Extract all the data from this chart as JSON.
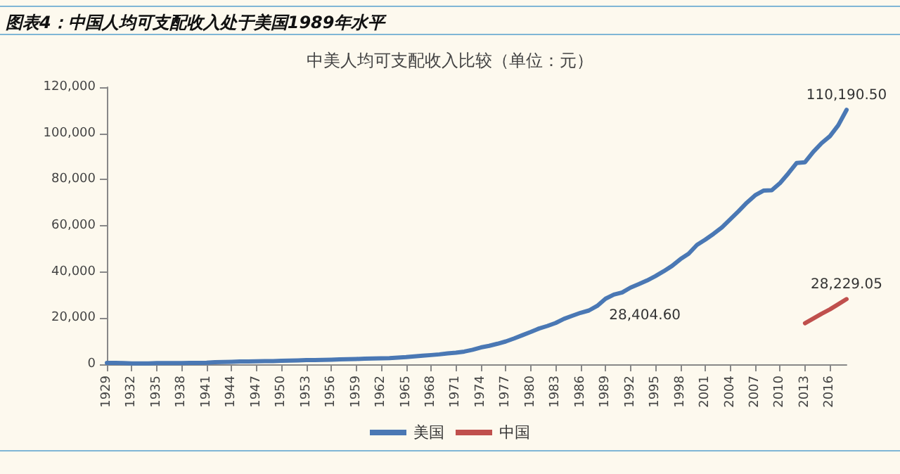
{
  "chart_data": {
    "type": "line",
    "title": "图表4：中国人均可支配收入处于美国1989年水平",
    "subtitle": "中美人均可支配收入比较（单位：元）",
    "categories": [
      "1929",
      null,
      null,
      "1932",
      null,
      null,
      "1935",
      null,
      null,
      "1938",
      null,
      null,
      "1941",
      null,
      null,
      "1944",
      null,
      null,
      "1947",
      null,
      null,
      "1950",
      null,
      null,
      "1953",
      null,
      null,
      "1956",
      null,
      null,
      "1959",
      null,
      null,
      "1962",
      null,
      null,
      "1965",
      null,
      null,
      "1968",
      null,
      null,
      "1971",
      null,
      null,
      "1974",
      null,
      null,
      "1977",
      null,
      null,
      "1980",
      null,
      null,
      "1983",
      null,
      null,
      "1986",
      null,
      null,
      "1989",
      null,
      null,
      "1992",
      null,
      null,
      "1995",
      null,
      null,
      "1998",
      null,
      null,
      "2001",
      null,
      null,
      "2004",
      null,
      null,
      "2007",
      null,
      null,
      "2010",
      null,
      null,
      "2013",
      null,
      null,
      "2016",
      null,
      null
    ],
    "series": [
      {
        "name": "美国",
        "color": "#4a78b4",
        "values": [
          600,
          600,
          500,
          400,
          400,
          400,
          500,
          500,
          500,
          500,
          600,
          600,
          700,
          900,
          1000,
          1100,
          1200,
          1200,
          1300,
          1400,
          1400,
          1500,
          1600,
          1700,
          1800,
          1800,
          1900,
          2000,
          2100,
          2200,
          2300,
          2400,
          2500,
          2600,
          2700,
          2900,
          3100,
          3400,
          3700,
          4000,
          4300,
          4700,
          5000,
          5500,
          6300,
          7300,
          8000,
          8900,
          9900,
          11200,
          12600,
          14000,
          15500,
          16600,
          17900,
          19700,
          21000,
          22300,
          23300,
          25300,
          28404.6,
          30200,
          31100,
          33200,
          34700,
          36300,
          38200,
          40300,
          42600,
          45500,
          47900,
          51700,
          54000,
          56500,
          59300,
          62800,
          66300,
          70000,
          73200,
          75200,
          75400,
          78500,
          82700,
          87200,
          87500,
          92000,
          95800,
          98800,
          103500,
          110190.5
        ],
        "value_labels": [
          null,
          null,
          null,
          null,
          null,
          null,
          null,
          null,
          null,
          null,
          null,
          null,
          null,
          null,
          null,
          null,
          null,
          null,
          null,
          null,
          null,
          null,
          null,
          null,
          null,
          null,
          null,
          null,
          null,
          null,
          null,
          null,
          null,
          null,
          null,
          null,
          null,
          null,
          null,
          null,
          null,
          null,
          null,
          null,
          null,
          null,
          null,
          null,
          null,
          null,
          null,
          null,
          null,
          null,
          null,
          null,
          null,
          null,
          null,
          null,
          "28,404.60",
          null,
          null,
          null,
          null,
          null,
          null,
          null,
          null,
          null,
          null,
          null,
          null,
          null,
          null,
          null,
          null,
          null,
          null,
          null,
          null,
          null,
          null,
          null,
          null,
          null,
          null,
          null,
          null,
          "110,190.50"
        ]
      },
      {
        "name": "中国",
        "color": "#c0504d",
        "values": [
          null,
          null,
          null,
          null,
          null,
          null,
          null,
          null,
          null,
          null,
          null,
          null,
          null,
          null,
          null,
          null,
          null,
          null,
          null,
          null,
          null,
          null,
          null,
          null,
          null,
          null,
          null,
          null,
          null,
          null,
          null,
          null,
          null,
          null,
          null,
          null,
          null,
          null,
          null,
          null,
          null,
          null,
          null,
          null,
          null,
          null,
          null,
          null,
          null,
          null,
          null,
          null,
          null,
          null,
          null,
          null,
          null,
          null,
          null,
          null,
          null,
          null,
          null,
          null,
          null,
          null,
          null,
          null,
          null,
          null,
          null,
          null,
          null,
          null,
          null,
          null,
          null,
          null,
          null,
          null,
          null,
          null,
          null,
          null,
          17800,
          19800,
          21900,
          23800,
          26000,
          28229.05
        ],
        "value_labels": [
          null,
          null,
          null,
          null,
          null,
          null,
          null,
          null,
          null,
          null,
          null,
          null,
          null,
          null,
          null,
          null,
          null,
          null,
          null,
          null,
          null,
          null,
          null,
          null,
          null,
          null,
          null,
          null,
          null,
          null,
          null,
          null,
          null,
          null,
          null,
          null,
          null,
          null,
          null,
          null,
          null,
          null,
          null,
          null,
          null,
          null,
          null,
          null,
          null,
          null,
          null,
          null,
          null,
          null,
          null,
          null,
          null,
          null,
          null,
          null,
          null,
          null,
          null,
          null,
          null,
          null,
          null,
          null,
          null,
          null,
          null,
          null,
          null,
          null,
          null,
          null,
          null,
          null,
          null,
          null,
          null,
          null,
          null,
          null,
          null,
          null,
          null,
          null,
          null,
          "28,229.05"
        ]
      }
    ],
    "ylim": [
      0,
      120000
    ],
    "yticks": [
      {
        "value": 0,
        "label": "0"
      },
      {
        "value": 20000,
        "label": "20,000"
      },
      {
        "value": 40000,
        "label": "40,000"
      },
      {
        "value": 60000,
        "label": "60,000"
      },
      {
        "value": 80000,
        "label": "80,000"
      },
      {
        "value": 100000,
        "label": "100,000"
      },
      {
        "value": 120000,
        "label": "120,000"
      }
    ],
    "grid": false,
    "legend": "bottom",
    "marker": "none",
    "line_style": "solid"
  }
}
